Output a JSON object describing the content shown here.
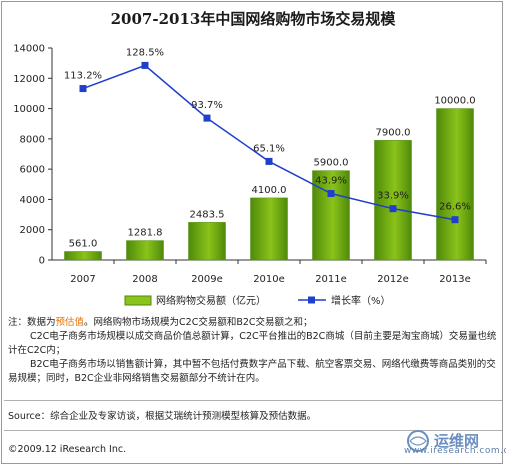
{
  "title": "2007-2013年中国网络购物市场交易规模",
  "chart_data": {
    "type": "bar+line",
    "categories": [
      "2007",
      "2008",
      "2009e",
      "2010e",
      "2011e",
      "2012e",
      "2013e"
    ],
    "series": [
      {
        "name": "网络购物交易额（亿元）",
        "type": "bar",
        "values": [
          561.0,
          1281.8,
          2483.5,
          4100.0,
          5900.0,
          7900.0,
          10000.0
        ],
        "value_labels": [
          "561.0",
          "1281.8",
          "2483.5",
          "4100.0",
          "5900.0",
          "7900.0",
          "10000.0"
        ]
      },
      {
        "name": "增长率（%）",
        "type": "line",
        "values": [
          113.2,
          128.5,
          93.7,
          65.1,
          43.9,
          33.9,
          26.6
        ],
        "value_labels": [
          "113.2%",
          "128.5%",
          "93.7%",
          "65.1%",
          "43.9%",
          "33.9%",
          "26.6%"
        ]
      }
    ],
    "ylim": [
      0,
      14000
    ],
    "yticks": [
      0,
      2000,
      4000,
      6000,
      8000,
      10000,
      12000,
      14000
    ],
    "y2lim": [
      0,
      140
    ],
    "legend_position": "bottom",
    "grid": false
  },
  "colors": {
    "bar": "#8ac31a",
    "bar_dark": "#4f8a0a",
    "line": "#1f3fcc",
    "highlight": "#e07000"
  },
  "notes": {
    "prefix": "注：数据为",
    "highlight": "预估值",
    "line1_rest": "。网络购物市场规模为C2C交易额和B2C交易额之和；",
    "line2": "C2C电子商务市场规模以成交商品价值总额计算，C2C平台推出的B2C商城（目前主要是淘宝商城）交易量也统计在C2C内；",
    "line3": "B2C电子商务市场以销售额计算，其中暂不包括付费数字产品下载、航空客票交易、网络代缴费等商品类别的交易规模；同时，B2C企业非网络销售交易额部分不统计在内。"
  },
  "source": "Source：综合企业及专家访谈，根据艾瑞统计预测模型核算及预估数据。",
  "copyright": "©2009.12 iResearch Inc.",
  "watermark": {
    "text": "运维网",
    "url": "www.iresearch.com.cn"
  }
}
